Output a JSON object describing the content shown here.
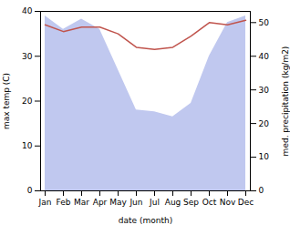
{
  "chart_data": {
    "type": "line",
    "xlabel": "date (month)",
    "ylabel": "max temp (C)",
    "y2label": "med. precipitation (kg/m2)",
    "categories": [
      "Jan",
      "Feb",
      "Mar",
      "Apr",
      "May",
      "Jun",
      "Jul",
      "Aug",
      "Sep",
      "Oct",
      "Nov",
      "Dec"
    ],
    "series": [
      {
        "type": "area",
        "axis": "y2",
        "color": "#c0c8ef",
        "values": [
          52.0,
          48.0,
          51.0,
          48.0,
          36.0,
          24.0,
          23.5,
          22.0,
          26.0,
          40.0,
          50.0,
          52.0
        ]
      },
      {
        "type": "line",
        "color": "#c0544d",
        "values": [
          37.0,
          35.5,
          36.5,
          36.5,
          35.0,
          32.0,
          31.5,
          32.0,
          34.5,
          37.5,
          37.0,
          38.0
        ]
      }
    ],
    "ylim": [
      0,
      40
    ],
    "yticks": [
      0,
      10,
      20,
      30,
      40
    ],
    "y2lim": [
      0,
      53.33
    ],
    "y2ticks": [
      0,
      10,
      20,
      30,
      40,
      50
    ],
    "grid": false
  }
}
